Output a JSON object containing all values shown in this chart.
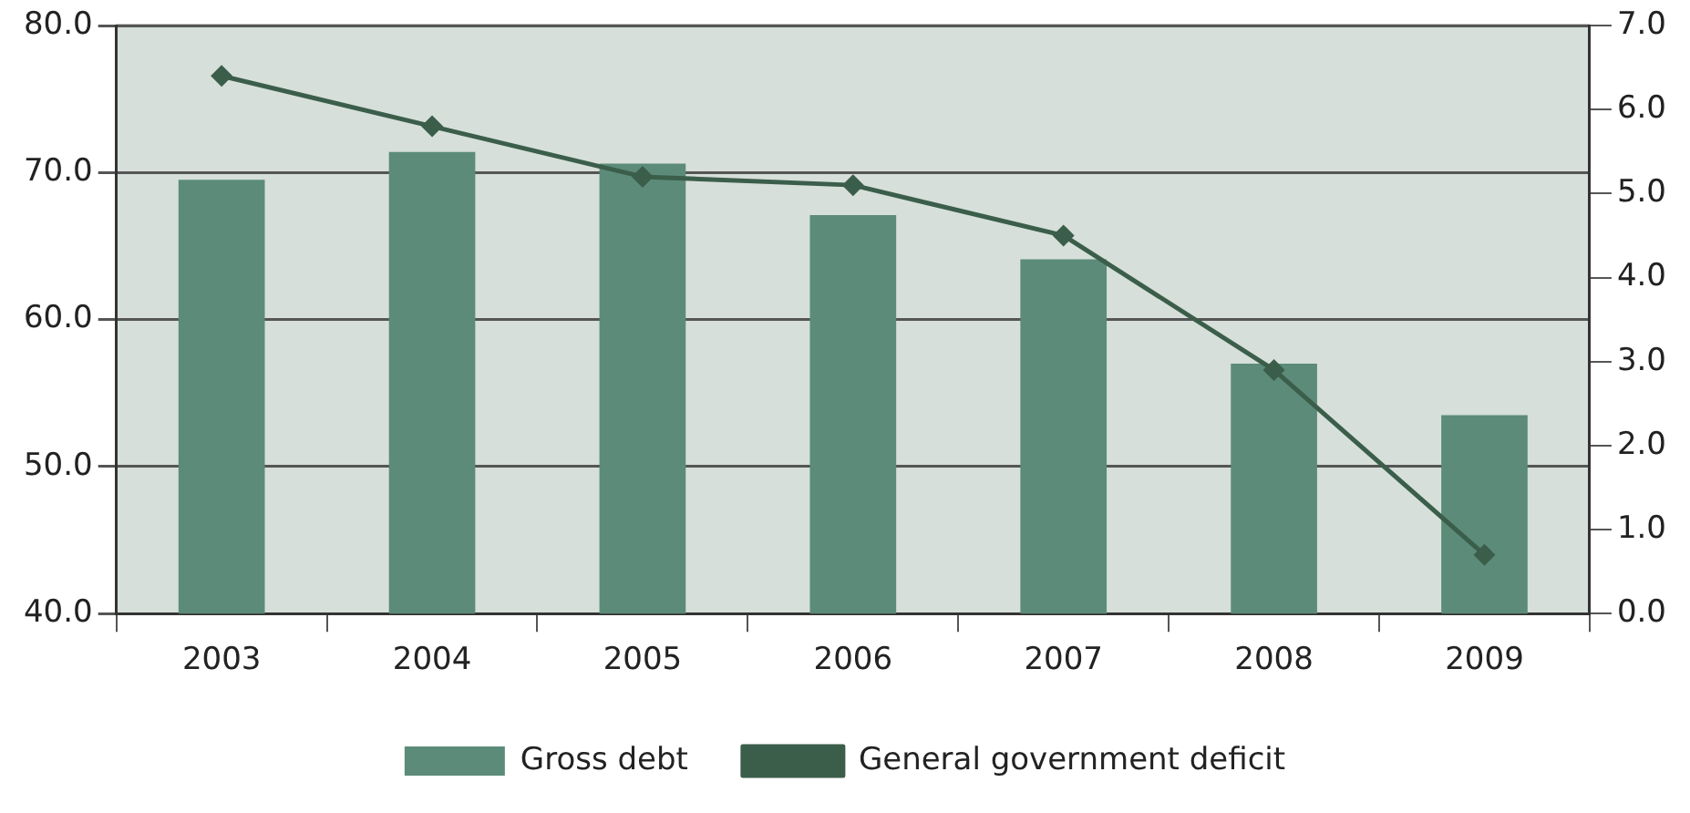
{
  "chart_data": {
    "type": "bar",
    "categories": [
      "2003",
      "2004",
      "2005",
      "2006",
      "2007",
      "2008",
      "2009"
    ],
    "series": [
      {
        "name": "Gross debt",
        "color": "#5c8b7a",
        "values": [
          69.5,
          71.4,
          70.6,
          67.1,
          64.1,
          57.0,
          53.5
        ]
      },
      {
        "name": "General government deficit",
        "type": "line",
        "axis": "y2",
        "color": "#3b5e4b",
        "marker": "diamond",
        "values": [
          6.4,
          5.8,
          5.2,
          5.1,
          4.5,
          2.9,
          0.7
        ]
      }
    ],
    "ylim": [
      40,
      80
    ],
    "yticks": [
      {
        "value": 40,
        "label": "40.0"
      },
      {
        "value": 50,
        "label": "50.0"
      },
      {
        "value": 60,
        "label": "60.0"
      },
      {
        "value": 70,
        "label": "70.0"
      },
      {
        "value": 80,
        "label": "80.0"
      }
    ],
    "y2lim": [
      0,
      7
    ],
    "y2ticks": [
      {
        "value": 0,
        "label": "0.0"
      },
      {
        "value": 1,
        "label": "1.0"
      },
      {
        "value": 2,
        "label": "2.0"
      },
      {
        "value": 3,
        "label": "3.0"
      },
      {
        "value": 4,
        "label": "4.0"
      },
      {
        "value": 5,
        "label": "5.0"
      },
      {
        "value": 6,
        "label": "6.0"
      },
      {
        "value": 7,
        "label": "7.0"
      }
    ],
    "grid": "y",
    "legend": "bottom"
  }
}
